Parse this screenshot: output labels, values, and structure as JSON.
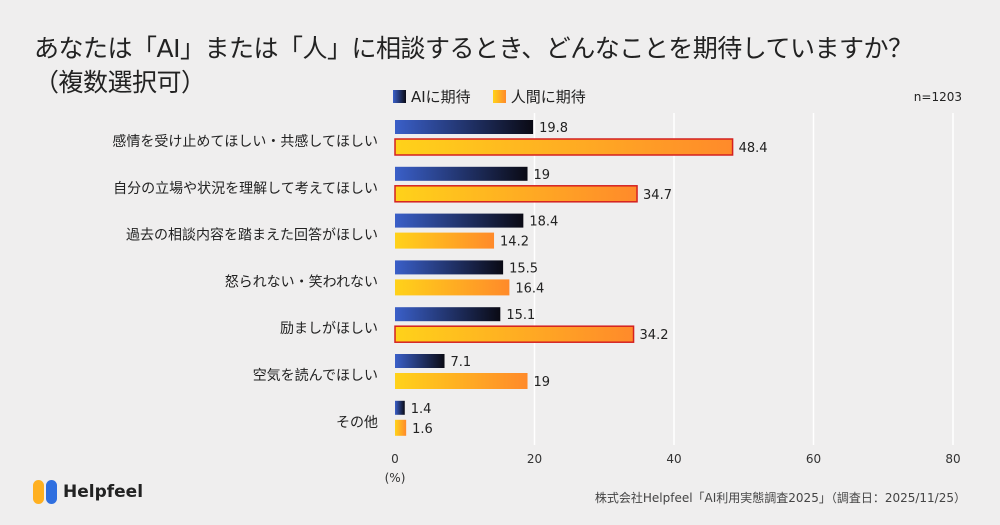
{
  "title_line1": "あなたは「AI」または「人」に相談するとき、どんなことを期待していますか？",
  "title_line2": "（複数選択可）",
  "n_label": "n=1203",
  "logo_text": "Helpfeel",
  "source": "株式会社Helpfeel「AI利用実態調査2025」（調査日：2025/11/25）",
  "colors": {
    "ai_start": "#3a5fc8",
    "ai_end": "#0a0a14",
    "human_start": "#ffd21a",
    "human_end": "#ff8a2a",
    "highlight": "#d42020",
    "grid": "#ffffff"
  },
  "chart_data": {
    "type": "bar",
    "orientation": "horizontal",
    "categories": [
      "感情を受け止めてほしい・共感してほしい",
      "自分の立場や状況を理解して考えてほしい",
      "過去の相談内容を踏まえた回答がほしい",
      "怒られない・笑われない",
      "励ましがほしい",
      "空気を読んでほしい",
      "その他"
    ],
    "series": [
      {
        "name": "AIに期待",
        "values": [
          19.8,
          19,
          18.4,
          15.5,
          15.1,
          7.1,
          1.4
        ]
      },
      {
        "name": "人間に期待",
        "values": [
          48.4,
          34.7,
          14.2,
          16.4,
          34.2,
          19,
          1.6
        ],
        "highlighted": [
          true,
          true,
          false,
          false,
          true,
          false,
          false
        ]
      }
    ],
    "xlim": [
      0,
      80
    ],
    "xticks": [
      0,
      20,
      40,
      60,
      80
    ],
    "xlabel": "(%)",
    "grid": true,
    "legend_position": "top"
  }
}
